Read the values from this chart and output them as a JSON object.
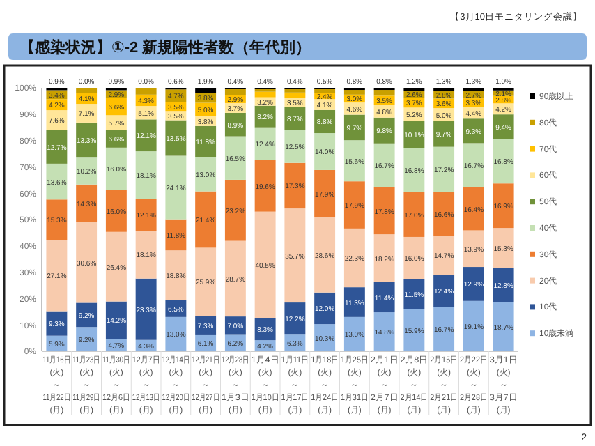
{
  "chart_data": {
    "type": "bar",
    "stacked": true,
    "title": "【感染状況】①-2 新規陽性者数（年代別）",
    "annotations": [
      "【3月10日モニタリング会議】",
      "2"
    ],
    "categories": [
      "11月16日\n(火)\n～\n11月22日\n(月)",
      "11月23日\n(火)\n～\n11月29日\n(月)",
      "11月30日\n(火)\n～\n12月6日\n(月)",
      "12月7日\n(火)\n～\n12月13日\n(月)",
      "12月14日\n(火)\n～\n12月20日\n(月)",
      "12月21日\n(火)\n～\n12月27日\n(月)",
      "12月28日\n(火)\n～\n1月3日\n(月)",
      "1月4日\n(火)\n～\n1月10日\n(月)",
      "1月11日\n(火)\n～\n1月17日\n(月)",
      "1月18日\n(火)\n～\n1月24日\n(月)",
      "1月25日\n(火)\n～\n1月31日\n(月)",
      "2月1日\n(火)\n～\n2月7日\n(月)",
      "2月8日\n(火)\n～\n2月14日\n(月)",
      "2月15日\n(火)\n～\n2月21日\n(月)",
      "2月22日\n(火)\n～\n2月28日\n(月)",
      "3月1日\n(火)\n～\n3月7日\n(月)"
    ],
    "series": [
      {
        "name": "10歳未満",
        "color": "#8eb4e3",
        "values": [
          5.9,
          9.2,
          4.7,
          4.3,
          13.0,
          6.1,
          6.2,
          4.2,
          6.3,
          10.3,
          13.0,
          14.8,
          15.9,
          16.7,
          19.1,
          18.7
        ],
        "value_labels": [
          "5.9%",
          "9.2%",
          "4.7%",
          "4.3%",
          "13.0%",
          "6.1%",
          "6.2%",
          "4.2%",
          "6.3%",
          "10.3%",
          "13.0%",
          "14.8%",
          "15.9%",
          "16.7%",
          "19.1%",
          "18.7%"
        ]
      },
      {
        "name": "10代",
        "color": "#2f5597",
        "values": [
          9.3,
          9.2,
          14.2,
          23.3,
          6.5,
          7.3,
          7.0,
          8.3,
          12.2,
          12.0,
          11.3,
          11.4,
          11.5,
          12.4,
          12.9,
          12.8
        ],
        "value_labels": [
          "9.3%",
          "9.2%",
          "14.2%",
          "23.3%",
          "6.5%",
          "7.3%",
          "7.0%",
          "8.3%",
          "12.2%",
          "12.0%",
          "11.3%",
          "11.4%",
          "11.5%",
          "12.4%",
          "12.9%",
          "12.8%"
        ]
      },
      {
        "name": "20代",
        "color": "#f8cbad",
        "values": [
          27.1,
          30.6,
          26.4,
          18.1,
          18.8,
          25.9,
          28.7,
          40.5,
          35.7,
          28.6,
          22.3,
          18.2,
          16.0,
          14.7,
          13.9,
          15.3
        ],
        "value_labels": [
          "27.1%",
          "30.6%",
          "26.4%",
          "18.1%",
          "18.8%",
          "25.9%",
          "28.7%",
          "40.5%",
          "35.7%",
          "28.6%",
          "22.3%",
          "18.2%",
          "16.0%",
          "14.7%",
          "13.9%",
          "15.3%"
        ]
      },
      {
        "name": "30代",
        "color": "#ed7d31",
        "values": [
          15.3,
          14.3,
          16.0,
          12.1,
          11.8,
          21.4,
          23.2,
          19.6,
          17.3,
          17.9,
          17.9,
          17.8,
          17.0,
          16.6,
          16.4,
          16.9
        ],
        "value_labels": [
          "15.3%",
          "14.3%",
          "16.0%",
          "12.1%",
          "11.8%",
          "21.4%",
          "23.2%",
          "19.6%",
          "17.3%",
          "17.9%",
          "17.9%",
          "17.8%",
          "17.0%",
          "16.6%",
          "16.4%",
          "16.9%"
        ]
      },
      {
        "name": "40代",
        "color": "#c5e0b4",
        "values": [
          13.6,
          10.2,
          16.0,
          18.1,
          24.1,
          13.0,
          16.5,
          12.4,
          12.5,
          14.0,
          15.6,
          16.7,
          16.8,
          17.2,
          16.7,
          16.8
        ],
        "value_labels": [
          "13.6%",
          "10.2%",
          "16.0%",
          "18.1%",
          "24.1%",
          "13.0%",
          "16.5%",
          "12.4%",
          "12.5%",
          "14.0%",
          "15.6%",
          "16.7%",
          "16.8%",
          "17.2%",
          "16.7%",
          "16.8%"
        ]
      },
      {
        "name": "50代",
        "color": "#70923a",
        "values": [
          12.7,
          13.3,
          6.6,
          12.1,
          13.5,
          11.8,
          8.9,
          8.2,
          8.7,
          8.8,
          9.7,
          9.8,
          10.1,
          9.7,
          9.3,
          9.4
        ],
        "value_labels": [
          "12.7%",
          "13.3%",
          "6.6%",
          "12.1%",
          "13.5%",
          "11.8%",
          "8.9%",
          "8.2%",
          "8.7%",
          "8.8%",
          "9.7%",
          "9.8%",
          "10.1%",
          "9.7%",
          "9.3%",
          "9.4%"
        ]
      },
      {
        "name": "60代",
        "color": "#ffe699",
        "values": [
          7.6,
          7.1,
          5.7,
          5.1,
          3.5,
          3.8,
          3.7,
          3.2,
          3.5,
          4.1,
          4.6,
          4.8,
          5.2,
          5.0,
          4.4,
          4.2
        ],
        "value_labels": [
          "7.6%",
          "7.1%",
          "5.7%",
          "5.1%",
          "3.5%",
          "3.8%",
          "3.7%",
          "3.2%",
          "3.5%",
          "4.1%",
          "4.6%",
          "4.8%",
          "5.2%",
          "5.0%",
          "4.4%",
          "4.2%"
        ]
      },
      {
        "name": "70代",
        "color": "#ffc000",
        "values": [
          4.2,
          4.1,
          6.6,
          4.3,
          3.5,
          5.0,
          2.9,
          2.1,
          2.0,
          2.4,
          3.0,
          3.5,
          3.7,
          3.6,
          3.3,
          2.8
        ],
        "value_labels": [
          "4.2%",
          "4.1%",
          "6.6%",
          "4.3%",
          "3.5%",
          "5.0%",
          "2.9%",
          null,
          null,
          "2.4%",
          "3.0%",
          "3.5%",
          "3.7%",
          "3.6%",
          "3.3%",
          "2.8%"
        ]
      },
      {
        "name": "80代",
        "color": "#c9a000",
        "values": [
          3.4,
          2.0,
          2.9,
          2.6,
          4.7,
          3.8,
          2.5,
          1.1,
          1.4,
          1.4,
          1.8,
          2.2,
          2.6,
          2.8,
          2.7,
          2.1
        ],
        "value_labels": [
          "3.4%",
          null,
          "2.9%",
          null,
          "4.7%",
          "3.8%",
          null,
          null,
          null,
          null,
          null,
          null,
          "2.6%",
          "2.8%",
          "2.7%",
          "2.1%"
        ]
      },
      {
        "name": "90歳以上",
        "color": "#000000",
        "values": [
          0.9,
          0.0,
          0.9,
          0.0,
          0.6,
          1.9,
          0.4,
          0.4,
          0.4,
          0.5,
          0.8,
          0.8,
          1.2,
          1.3,
          1.3,
          1.0
        ],
        "value_labels": [
          "0.9%",
          "0.0%",
          "0.9%",
          "0.0%",
          "0.6%",
          "1.9%",
          "0.4%",
          "0.4%",
          "0.4%",
          "0.5%",
          "0.8%",
          "0.8%",
          "1.2%",
          "1.3%",
          "1.3%",
          "1.0%"
        ]
      }
    ],
    "ylim": [
      0,
      100
    ],
    "yticks": [
      {
        "value": 0,
        "label": "0%"
      },
      {
        "value": 10,
        "label": "10%"
      },
      {
        "value": 20,
        "label": "20%"
      },
      {
        "value": 30,
        "label": "30%"
      },
      {
        "value": 40,
        "label": "40%"
      },
      {
        "value": 50,
        "label": "50%"
      },
      {
        "value": 60,
        "label": "60%"
      },
      {
        "value": 70,
        "label": "70%"
      },
      {
        "value": 80,
        "label": "80%"
      },
      {
        "value": 90,
        "label": "90%"
      },
      {
        "value": 100,
        "label": "100%"
      }
    ],
    "legend": "right",
    "grid": false
  }
}
